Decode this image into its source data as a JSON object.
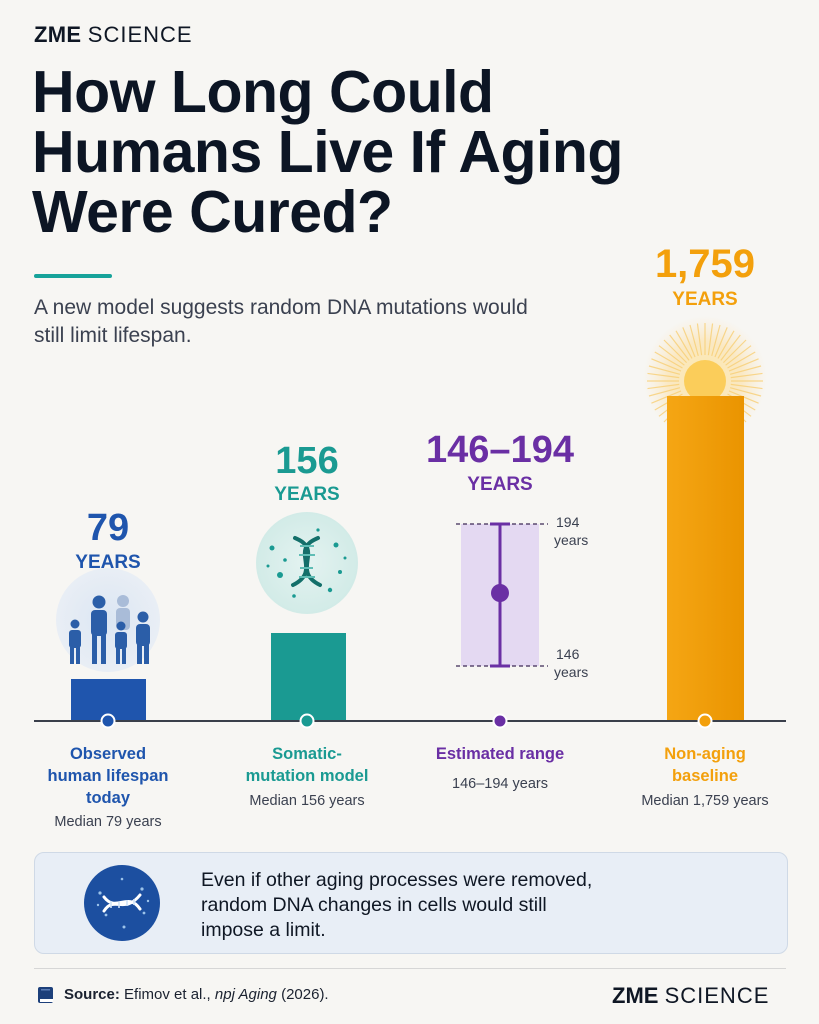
{
  "brand": {
    "strong": "ZME",
    "light": "SCIENCE"
  },
  "title": "How Long Could Humans Live If Aging Were Cured?",
  "subtitle": "A new model suggests random DNA mutations would still limit lifespan.",
  "colors": {
    "accent_teal": "#17a39a",
    "blue": "#1f55ad",
    "teal": "#1a9a92",
    "purple": "#6a2fa4",
    "orange": "#f3a00c"
  },
  "chart_data": {
    "type": "bar",
    "categories": [
      "Observed human lifespan today",
      "Somatic-mutation model",
      "Estimated range",
      "Non-aging baseline"
    ],
    "values": [
      79,
      156,
      null,
      1759
    ],
    "range": {
      "low": 146,
      "high": 194
    },
    "unit": "years",
    "scale": "non-linear (illustrative)",
    "bars": [
      {
        "value_label": "79",
        "unit_label": "YEARS",
        "name_lines": [
          "Observed",
          "human lifespan",
          "today"
        ],
        "sub": "Median 79 years",
        "color": "#1f55ad",
        "icon": "family-silhouette-icon"
      },
      {
        "value_label": "156",
        "unit_label": "YEARS",
        "name_lines": [
          "Somatic-",
          "mutation model"
        ],
        "sub": "Median 156 years",
        "color": "#1a9a92",
        "icon": "dna-helix-icon"
      },
      {
        "value_label": "146–194",
        "unit_label": "YEARS",
        "name_lines": [
          "Estimated range"
        ],
        "sub": "146–194 years",
        "color": "#6a2fa4",
        "icon": "range-errorbar-icon",
        "range_top_num": "194",
        "range_top_unit": "years",
        "range_bottom_num": "146",
        "range_bottom_unit": "years"
      },
      {
        "value_label": "1,759",
        "unit_label": "YEARS",
        "name_lines": [
          "Non-aging",
          "baseline"
        ],
        "sub": "Median 1,759 years",
        "color": "#f3a00c",
        "icon": "sun-icon"
      }
    ]
  },
  "callout": {
    "lines": [
      "Even if other aging processes were removed,",
      "random DNA changes in cells would still",
      "impose a limit."
    ],
    "icon": "dna-cell-icon"
  },
  "source": {
    "label": "Source:",
    "text": " Efimov et al., ",
    "journal": "npj Aging",
    "year": " (2026)."
  }
}
